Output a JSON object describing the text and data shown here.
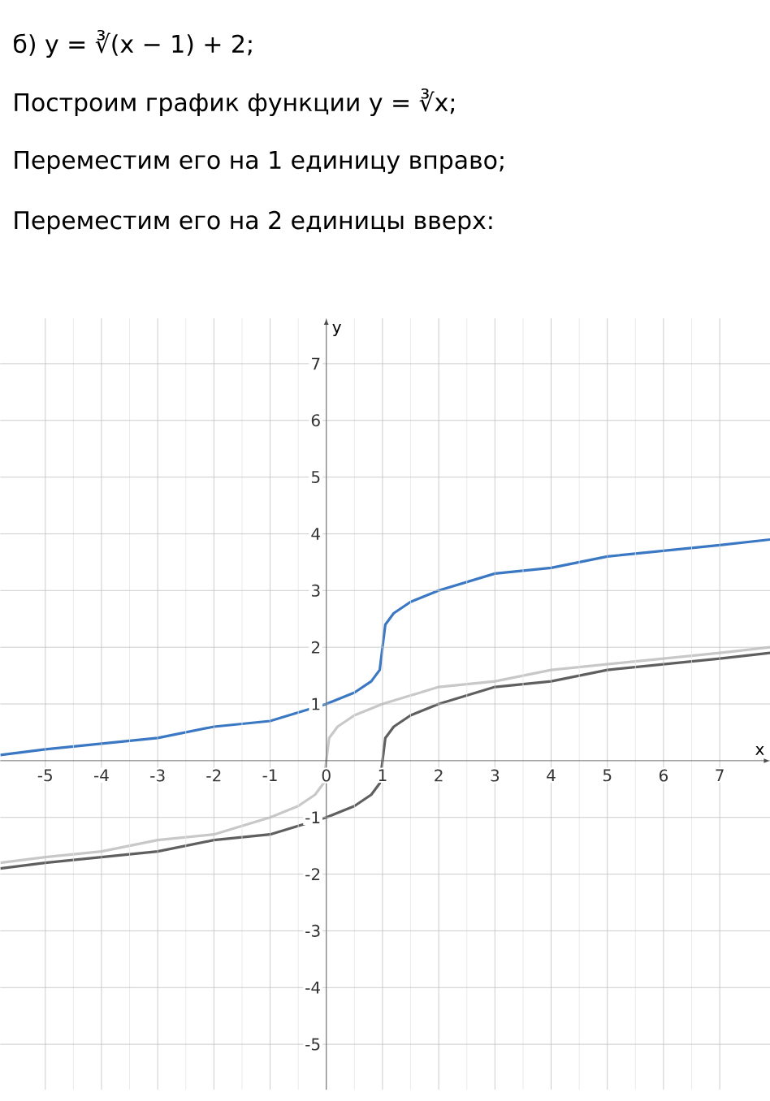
{
  "chart_data": {
    "type": "line",
    "title": "б) y = ∛(x − 1) + 2;",
    "annotations": [
      "Построим график функции y = ∛x;",
      "Переместим его на 1 единицу вправо;",
      "Переместим его на 2 единицы вверх:"
    ],
    "xlabel": "x",
    "ylabel": "y",
    "xlim": [
      -5.8,
      7.9
    ],
    "ylim": [
      -5.8,
      7.8
    ],
    "xticks": [
      -5,
      -4,
      -3,
      -2,
      -1,
      0,
      1,
      2,
      3,
      4,
      5,
      6,
      7
    ],
    "yticks": [
      -5,
      -4,
      -3,
      -2,
      -1,
      1,
      2,
      3,
      4,
      5,
      6,
      7
    ],
    "grid": true,
    "series": [
      {
        "color": "#c8c8c8",
        "x": [
          -5.8,
          -5,
          -4,
          -3,
          -2,
          -1,
          -0.5,
          -0.2,
          -0.05,
          0,
          0.05,
          0.2,
          0.5,
          1,
          2,
          3,
          4,
          5,
          6,
          7,
          7.9
        ],
        "values": [
          -1.8,
          -1.7,
          -1.6,
          -1.4,
          -1.3,
          -1,
          -0.8,
          -0.6,
          -0.4,
          0,
          0.4,
          0.6,
          0.8,
          1,
          1.3,
          1.4,
          1.6,
          1.7,
          1.8,
          1.9,
          2.0
        ]
      },
      {
        "color": "#5f5f5f",
        "x": [
          -5.8,
          -5,
          -4,
          -3,
          -2,
          -1,
          0,
          0.5,
          0.8,
          0.95,
          1,
          1.05,
          1.2,
          1.5,
          2,
          3,
          4,
          5,
          6,
          7,
          7.9
        ],
        "values": [
          -1.9,
          -1.8,
          -1.7,
          -1.6,
          -1.4,
          -1.3,
          -1,
          -0.8,
          -0.6,
          -0.4,
          0,
          0.4,
          0.6,
          0.8,
          1,
          1.3,
          1.4,
          1.6,
          1.7,
          1.8,
          1.9
        ]
      },
      {
        "color": "#3a78c3",
        "x": [
          -5.8,
          -5,
          -4,
          -3,
          -2,
          -1,
          0,
          0.5,
          0.8,
          0.95,
          1,
          1.05,
          1.2,
          1.5,
          2,
          3,
          4,
          5,
          6,
          7,
          7.9
        ],
        "values": [
          0.1,
          0.2,
          0.3,
          0.4,
          0.6,
          0.7,
          1,
          1.2,
          1.4,
          1.6,
          2,
          2.4,
          2.6,
          2.8,
          3,
          3.3,
          3.4,
          3.6,
          3.7,
          3.8,
          3.9
        ]
      }
    ],
    "line_style": "solid"
  }
}
